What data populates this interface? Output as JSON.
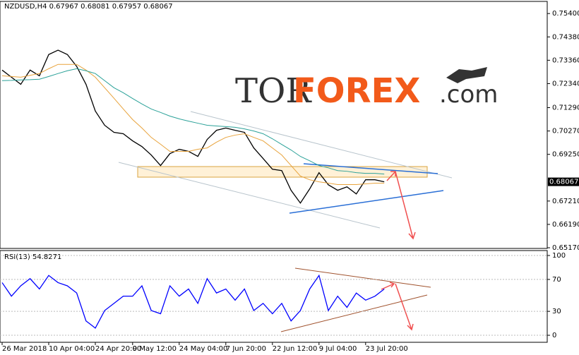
{
  "chart_data": [
    {
      "type": "line",
      "title": "NZDUSD,H4  0.67967 0.68081 0.67957 0.68067",
      "price_label": "0.68067",
      "logo": {
        "part1": "TOR",
        "part2": "FOREX",
        "part3": ".com"
      },
      "categories": [
        "26 Mar 2018",
        null,
        null,
        null,
        null,
        "10 Apr 04:00",
        null,
        null,
        null,
        null,
        "24 Apr 20:00",
        null,
        null,
        null,
        "9 May 12:00",
        null,
        null,
        null,
        null,
        "24 May 04:00",
        null,
        null,
        null,
        null,
        "7 Jun 20:00",
        null,
        null,
        null,
        null,
        "22 Jun 12:00",
        null,
        null,
        null,
        null,
        "9 Jul 04:00",
        null,
        null,
        null,
        null,
        "23 Jul 20:00",
        null,
        null
      ],
      "series": [
        {
          "color": "#000000",
          "values": [
            0.7293,
            0.7262,
            0.7231,
            0.7293,
            0.7268,
            0.7361,
            0.738,
            0.7361,
            0.7309,
            0.7231,
            0.7114,
            0.7052,
            0.7021,
            0.7015,
            0.6984,
            0.6959,
            0.6922,
            0.6876,
            0.6928,
            0.6947,
            0.6938,
            0.6916,
            0.699,
            0.703,
            0.704,
            0.703,
            0.7021,
            0.6953,
            0.6907,
            0.686,
            0.6854,
            0.6768,
            0.6712,
            0.6774,
            0.6845,
            0.6792,
            0.6768,
            0.6783,
            0.6752,
            0.6814,
            0.6814,
            0.6805
          ]
        },
        {
          "color": "#e8a33c",
          "values": [
            0.7268,
            0.7265,
            0.7262,
            0.727,
            0.7278,
            0.7299,
            0.7318,
            0.7318,
            0.7318,
            0.7293,
            0.7262,
            0.7216,
            0.717,
            0.7123,
            0.7077,
            0.704,
            0.6999,
            0.6969,
            0.6938,
            0.6938,
            0.6938,
            0.6947,
            0.6953,
            0.6978,
            0.6999,
            0.7009,
            0.7015,
            0.6999,
            0.6984,
            0.6953,
            0.6922,
            0.6876,
            0.683,
            0.6814,
            0.6805,
            0.6799,
            0.6793,
            0.6793,
            0.6793,
            0.6796,
            0.6799,
            0.6799
          ]
        },
        {
          "color": "#2aa198",
          "values": [
            0.7247,
            0.7248,
            0.725,
            0.7251,
            0.7253,
            0.7265,
            0.7278,
            0.729,
            0.7299,
            0.729,
            0.7278,
            0.7247,
            0.7216,
            0.7194,
            0.7169,
            0.7145,
            0.7123,
            0.7108,
            0.7092,
            0.708,
            0.707,
            0.7061,
            0.7052,
            0.7049,
            0.7046,
            0.7043,
            0.7036,
            0.7027,
            0.7015,
            0.6993,
            0.6968,
            0.6944,
            0.6916,
            0.6897,
            0.6876,
            0.6866,
            0.6854,
            0.6851,
            0.6845,
            0.6842,
            0.6842,
            0.6839
          ]
        }
      ],
      "ylim": [
        0.6514,
        0.7593
      ],
      "yticks": [
        {
          "value": 0.754,
          "label": "0.75400"
        },
        {
          "value": 0.7438,
          "label": "0.74380"
        },
        {
          "value": 0.7336,
          "label": "0.73360"
        },
        {
          "value": 0.7234,
          "label": "0.72340"
        },
        {
          "value": 0.7129,
          "label": "0.71290"
        },
        {
          "value": 0.7027,
          "label": "0.70270"
        },
        {
          "value": 0.6925,
          "label": "0.69250"
        },
        {
          "value": 0.6721,
          "label": "0.67210"
        },
        {
          "value": 0.6619,
          "label": "0.66190"
        },
        {
          "value": 0.6517,
          "label": "0.65170"
        }
      ]
    },
    {
      "type": "line",
      "title": "RSI(13) 54.8271",
      "series": [
        {
          "color": "#0000ff",
          "values": [
            66,
            49,
            62,
            71,
            58,
            75,
            66,
            62,
            53,
            18,
            9,
            31,
            40,
            49,
            49,
            62,
            31,
            27,
            62,
            49,
            58,
            40,
            71,
            53,
            58,
            44,
            58,
            31,
            40,
            27,
            40,
            18,
            31,
            58,
            75,
            31,
            49,
            35,
            53,
            44,
            49,
            58
          ]
        }
      ],
      "ylim": [
        -8.8,
        106.2
      ],
      "yticks": [
        100,
        70,
        30,
        0
      ]
    }
  ]
}
